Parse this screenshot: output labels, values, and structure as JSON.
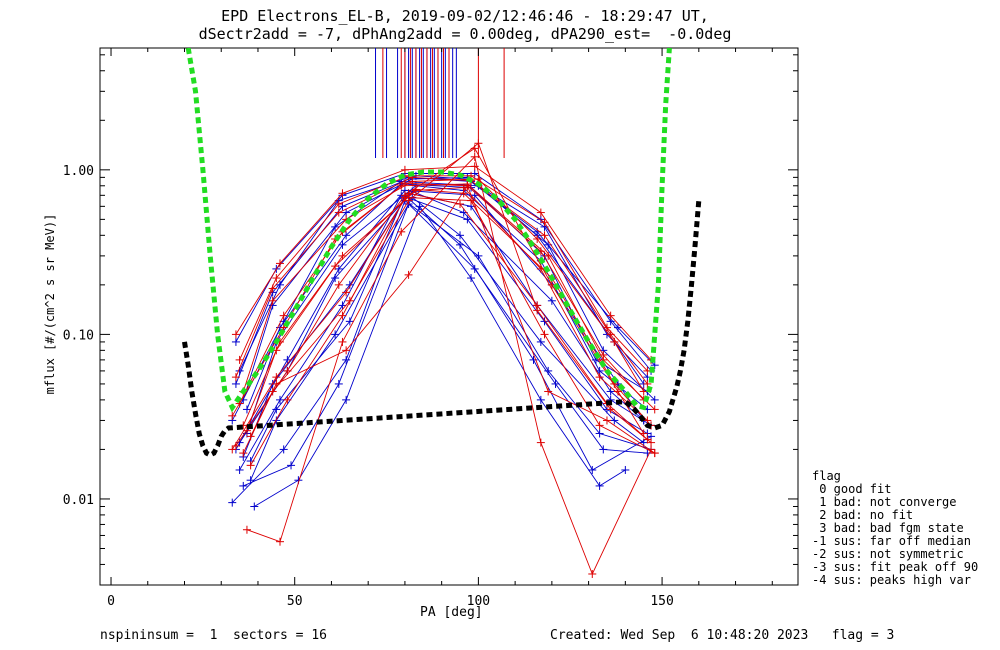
{
  "title_line1": "EPD Electrons_EL-B, 2019-09-02/12:46:46 - 18:29:47 UT,",
  "title_line2": "dSectr2add = -7, dPhAng2add = 0.00deg, dPA290_est=  -0.0deg",
  "footer_left": "nspininsum =  1  sectors = 16",
  "footer_right": "Created: Wed Sep  6 10:48:20 2023   flag = 3",
  "legend_title": "flag",
  "legend_items": [
    " 0 good fit",
    " 1 bad: not converge",
    " 2 bad: no fit",
    " 3 bad: bad fgm state",
    "-1 sus: far off median",
    "-2 sus: not symmetric",
    "-3 sus: fit peak off 90",
    "-4 sus: peaks high var"
  ],
  "chart_data": {
    "type": "line",
    "xlabel": "PA [deg]",
    "ylabel": "mflux [#/(cm^2 s sr MeV)]",
    "xlim": [
      -3,
      187
    ],
    "ylim": [
      0.003,
      5.5
    ],
    "yscale": "log",
    "x_ticks": [
      0,
      50,
      100,
      150
    ],
    "x_tick_labels": [
      "0",
      "50",
      "100",
      "150"
    ],
    "y_ticks": [
      0.01,
      0.1,
      1.0
    ],
    "y_tick_labels": [
      "0.01",
      "0.10",
      "1.00"
    ],
    "colors": {
      "spinA": "#0000cc",
      "spinB": "#dd0000",
      "fit_green": "#22dd22",
      "fit_black": "#000000"
    },
    "fit_green": {
      "x": [
        21,
        23,
        25,
        27,
        29,
        31,
        33,
        36,
        40,
        45,
        50,
        55,
        60,
        65,
        70,
        75,
        80,
        85,
        90,
        95,
        100,
        105,
        110,
        115,
        120,
        125,
        130,
        135,
        140,
        143,
        145,
        147,
        149,
        150,
        151,
        152
      ],
      "y": [
        5.5,
        3.0,
        1.0,
        0.3,
        0.1,
        0.045,
        0.036,
        0.045,
        0.06,
        0.09,
        0.14,
        0.22,
        0.34,
        0.5,
        0.67,
        0.82,
        0.93,
        0.97,
        0.97,
        0.93,
        0.82,
        0.67,
        0.5,
        0.34,
        0.22,
        0.14,
        0.09,
        0.06,
        0.045,
        0.037,
        0.036,
        0.05,
        0.2,
        0.8,
        2.5,
        5.5
      ]
    },
    "fit_black": {
      "x": [
        20,
        21,
        22,
        23,
        24,
        25,
        26,
        27,
        28,
        29,
        30,
        31,
        32,
        140,
        142,
        144,
        146,
        148,
        150,
        152,
        154,
        155,
        156,
        157,
        158,
        159,
        160
      ],
      "y": [
        0.09,
        0.065,
        0.045,
        0.033,
        0.025,
        0.021,
        0.019,
        0.0185,
        0.019,
        0.021,
        0.024,
        0.026,
        0.027,
        0.039,
        0.036,
        0.032,
        0.028,
        0.027,
        0.028,
        0.034,
        0.048,
        0.06,
        0.08,
        0.12,
        0.2,
        0.35,
        0.65
      ]
    },
    "markers_top_blue_x": [
      72,
      75,
      78,
      80,
      81,
      82,
      83,
      84,
      85,
      86,
      87,
      88,
      89,
      90,
      91,
      92,
      93,
      94
    ],
    "markers_top_red_x": [
      74,
      79,
      80,
      81.5,
      83,
      84.5,
      86,
      87.5,
      89,
      90.5,
      92,
      100,
      107
    ],
    "series": [
      {
        "spin": "A",
        "x": [
          34,
          45,
          63,
          80,
          99,
          117,
          136,
          147
        ],
        "y": [
          0.09,
          0.25,
          0.7,
          0.95,
          0.95,
          0.5,
          0.12,
          0.06
        ]
      },
      {
        "spin": "A",
        "x": [
          35,
          46,
          62,
          81,
          98,
          118,
          135,
          146
        ],
        "y": [
          0.06,
          0.2,
          0.65,
          0.9,
          0.85,
          0.45,
          0.1,
          0.055
        ]
      },
      {
        "spin": "A",
        "x": [
          36,
          44,
          64,
          82,
          97,
          116,
          137,
          145
        ],
        "y": [
          0.04,
          0.15,
          0.55,
          0.88,
          0.9,
          0.4,
          0.09,
          0.05
        ]
      },
      {
        "spin": "A",
        "x": [
          33,
          47,
          61,
          79,
          100,
          119,
          134,
          148
        ],
        "y": [
          0.03,
          0.12,
          0.45,
          0.85,
          0.8,
          0.35,
          0.08,
          0.04
        ]
      },
      {
        "spin": "A",
        "x": [
          37,
          45,
          63,
          83,
          96,
          117,
          133,
          146
        ],
        "y": [
          0.025,
          0.09,
          0.35,
          0.8,
          0.75,
          0.28,
          0.06,
          0.035
        ]
      },
      {
        "spin": "A",
        "x": [
          34,
          48,
          62,
          80,
          99,
          120,
          138,
          145
        ],
        "y": [
          0.02,
          0.07,
          0.25,
          0.75,
          0.7,
          0.2,
          0.05,
          0.03
        ]
      },
      {
        "spin": "A",
        "x": [
          36,
          44,
          65,
          81,
          98,
          116,
          136,
          147
        ],
        "y": [
          0.018,
          0.05,
          0.2,
          0.72,
          0.6,
          0.15,
          0.04,
          0.028
        ]
      },
      {
        "spin": "A",
        "x": [
          35,
          46,
          63,
          79,
          97,
          118,
          135,
          146
        ],
        "y": [
          0.015,
          0.04,
          0.15,
          0.7,
          0.5,
          0.12,
          0.035,
          0.025
        ]
      },
      {
        "spin": "A",
        "x": [
          38,
          45,
          61,
          82,
          95,
          117,
          137,
          145
        ],
        "y": [
          0.013,
          0.03,
          0.1,
          0.68,
          0.4,
          0.09,
          0.03,
          0.022
        ]
      },
      {
        "spin": "A",
        "x": [
          33,
          47,
          64,
          80,
          100,
          119,
          133,
          147
        ],
        "y": [
          0.0095,
          0.02,
          0.07,
          0.65,
          0.3,
          0.06,
          0.025,
          0.02
        ]
      },
      {
        "spin": "A",
        "x": [
          36,
          49,
          62,
          81,
          99,
          121,
          134,
          146
        ],
        "y": [
          0.012,
          0.016,
          0.05,
          0.62,
          0.25,
          0.05,
          0.02,
          0.019
        ]
      },
      {
        "spin": "A",
        "x": [
          34,
          44,
          63,
          83,
          97,
          116,
          138,
          148
        ],
        "y": [
          0.05,
          0.18,
          0.6,
          0.92,
          0.88,
          0.42,
          0.11,
          0.065
        ]
      },
      {
        "spin": "A",
        "x": [
          37,
          46,
          64,
          79,
          98,
          118,
          132,
          146
        ],
        "y": [
          0.035,
          0.11,
          0.4,
          0.82,
          0.78,
          0.3,
          0.07,
          0.045
        ]
      },
      {
        "spin": "A",
        "x": [
          35,
          48,
          61,
          82,
          96,
          120,
          136,
          145
        ],
        "y": [
          0.022,
          0.06,
          0.22,
          0.74,
          0.55,
          0.16,
          0.045,
          0.03
        ]
      },
      {
        "spin": "A",
        "x": [
          38,
          45,
          65,
          80,
          95,
          115,
          131,
          147
        ],
        "y": [
          0.017,
          0.035,
          0.12,
          0.7,
          0.35,
          0.07,
          0.015,
          0.024
        ]
      },
      {
        "spin": "A",
        "x": [
          39,
          51,
          64,
          84,
          98,
          117,
          133,
          140
        ],
        "y": [
          0.009,
          0.013,
          0.04,
          0.6,
          0.22,
          0.04,
          0.012,
          0.015
        ]
      },
      {
        "spin": "B",
        "x": [
          34,
          46,
          63,
          80,
          99,
          117,
          136,
          147
        ],
        "y": [
          0.1,
          0.27,
          0.72,
          1.0,
          1.05,
          0.55,
          0.13,
          0.07
        ]
      },
      {
        "spin": "B",
        "x": [
          35,
          45,
          62,
          81,
          98,
          118,
          135,
          146
        ],
        "y": [
          0.07,
          0.22,
          0.62,
          0.92,
          0.92,
          0.48,
          0.11,
          0.06
        ]
      },
      {
        "spin": "B",
        "x": [
          36,
          44,
          64,
          82,
          100,
          116,
          137,
          145
        ],
        "y": [
          0.045,
          0.16,
          0.5,
          0.85,
          0.88,
          0.38,
          0.09,
          0.045
        ]
      },
      {
        "spin": "B",
        "x": [
          33,
          47,
          61,
          79,
          97,
          119,
          134,
          148
        ],
        "y": [
          0.032,
          0.11,
          0.38,
          0.8,
          0.82,
          0.3,
          0.07,
          0.035
        ]
      },
      {
        "spin": "B",
        "x": [
          37,
          45,
          63,
          83,
          96,
          117,
          133,
          146
        ],
        "y": [
          0.026,
          0.08,
          0.3,
          0.75,
          0.78,
          0.25,
          0.055,
          0.03
        ]
      },
      {
        "spin": "B",
        "x": [
          34,
          48,
          62,
          80,
          99,
          120,
          138,
          145
        ],
        "y": [
          0.021,
          0.06,
          0.2,
          0.7,
          1.35,
          0.2,
          0.045,
          0.025
        ]
      },
      {
        "spin": "B",
        "x": [
          36,
          44,
          65,
          81,
          100,
          116,
          136,
          147
        ],
        "y": [
          0.019,
          0.045,
          0.16,
          0.65,
          1.45,
          0.14,
          0.035,
          0.022
        ]
      },
      {
        "spin": "B",
        "x": [
          37,
          46,
          63,
          79,
          99,
          117,
          131,
          147
        ],
        "y": [
          0.0065,
          0.0055,
          0.09,
          0.42,
          1.2,
          0.022,
          0.0035,
          0.02
        ]
      },
      {
        "spin": "B",
        "x": [
          38,
          45,
          64,
          81,
          97,
          119,
          135,
          148
        ],
        "y": [
          0.024,
          0.05,
          0.08,
          0.23,
          0.8,
          0.045,
          0.03,
          0.019
        ]
      },
      {
        "spin": "B",
        "x": [
          34,
          44,
          62,
          82,
          98,
          118,
          136,
          146
        ],
        "y": [
          0.055,
          0.19,
          0.55,
          0.9,
          0.86,
          0.4,
          0.1,
          0.05
        ]
      },
      {
        "spin": "B",
        "x": [
          35,
          47,
          63,
          80,
          97,
          117,
          134,
          145
        ],
        "y": [
          0.038,
          0.13,
          0.42,
          0.83,
          0.8,
          0.32,
          0.075,
          0.04
        ]
      },
      {
        "spin": "B",
        "x": [
          36,
          46,
          61,
          83,
          96,
          120,
          137,
          147
        ],
        "y": [
          0.028,
          0.09,
          0.26,
          0.76,
          0.72,
          0.22,
          0.05,
          0.028
        ]
      },
      {
        "spin": "B",
        "x": [
          33,
          45,
          64,
          81,
          95,
          116,
          135,
          146
        ],
        "y": [
          0.02,
          0.055,
          0.18,
          0.72,
          0.62,
          0.15,
          0.038,
          0.023
        ]
      },
      {
        "spin": "B",
        "x": [
          38,
          48,
          63,
          80,
          98,
          118,
          133,
          148
        ],
        "y": [
          0.016,
          0.04,
          0.13,
          0.68,
          0.65,
          0.1,
          0.028,
          0.019
        ]
      }
    ]
  }
}
